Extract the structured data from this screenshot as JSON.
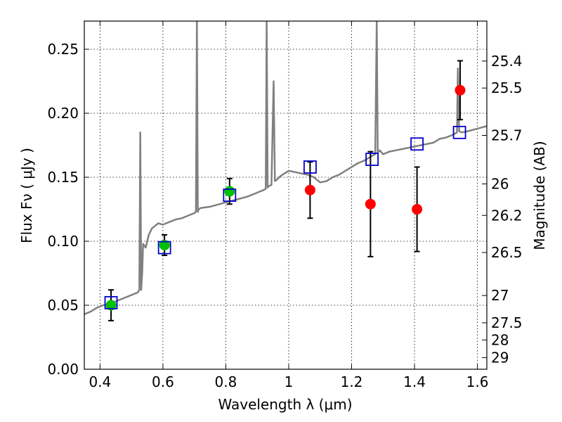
{
  "chart_data": {
    "type": "scatter",
    "title": "",
    "xlabel": "Wavelength  λ (μm)",
    "ylabel": "Flux  Fν  ( μJy )",
    "ylabel_right": "Magnitude (AB)",
    "xlim": [
      0.35,
      1.63
    ],
    "ylim": [
      0.0,
      0.272
    ],
    "grid": true,
    "x_ticks": [
      {
        "value": 0.4,
        "label": "0.4"
      },
      {
        "value": 0.6,
        "label": "0.6"
      },
      {
        "value": 0.8,
        "label": "0.8"
      },
      {
        "value": 1.0,
        "label": "1"
      },
      {
        "value": 1.2,
        "label": "1.2"
      },
      {
        "value": 1.4,
        "label": "1.4"
      },
      {
        "value": 1.6,
        "label": "1.6"
      }
    ],
    "y_ticks": [
      {
        "value": 0.0,
        "label": "0.00"
      },
      {
        "value": 0.05,
        "label": "0.05"
      },
      {
        "value": 0.1,
        "label": "0.10"
      },
      {
        "value": 0.15,
        "label": "0.15"
      },
      {
        "value": 0.2,
        "label": "0.20"
      },
      {
        "value": 0.25,
        "label": "0.25"
      }
    ],
    "right_ticks": [
      {
        "flux": 0.2408,
        "label": "25.4"
      },
      {
        "flux": 0.2197,
        "label": "25.5"
      },
      {
        "flux": 0.1827,
        "label": "25.7"
      },
      {
        "flux": 0.1448,
        "label": "26"
      },
      {
        "flux": 0.1202,
        "label": "26.2"
      },
      {
        "flux": 0.0912,
        "label": "26.5"
      },
      {
        "flux": 0.0576,
        "label": "27"
      },
      {
        "flux": 0.0363,
        "label": "27.5"
      },
      {
        "flux": 0.0229,
        "label": "28"
      },
      {
        "flux": 0.0091,
        "label": "29"
      }
    ],
    "colors": {
      "model": "#808080",
      "green_points": "#00c000",
      "red_points": "#ff0000",
      "squares": "#0000cc",
      "errorbars": "#000000",
      "grid": "#000000"
    },
    "series": [
      {
        "kind": "model-spectrum",
        "x": [
          0.35,
          0.37,
          0.39,
          0.41,
          0.43,
          0.45,
          0.47,
          0.49,
          0.51,
          0.52,
          0.525,
          0.528,
          0.531,
          0.534,
          0.537,
          0.545,
          0.555,
          0.565,
          0.575,
          0.585,
          0.6,
          0.62,
          0.64,
          0.66,
          0.68,
          0.7,
          0.705,
          0.708,
          0.711,
          0.714,
          0.72,
          0.75,
          0.78,
          0.81,
          0.84,
          0.87,
          0.9,
          0.92,
          0.927,
          0.93,
          0.933,
          0.936,
          0.945,
          0.952,
          0.956,
          0.962,
          0.97,
          0.98,
          1.0,
          1.02,
          1.04,
          1.06,
          1.08,
          1.1,
          1.12,
          1.14,
          1.16,
          1.18,
          1.2,
          1.22,
          1.24,
          1.26,
          1.275,
          1.28,
          1.283,
          1.286,
          1.29,
          1.3,
          1.32,
          1.34,
          1.36,
          1.38,
          1.4,
          1.42,
          1.44,
          1.46,
          1.48,
          1.5,
          1.52,
          1.535,
          1.538,
          1.542,
          1.55,
          1.57,
          1.6,
          1.63
        ],
        "y": [
          0.043,
          0.045,
          0.048,
          0.05,
          0.051,
          0.053,
          0.055,
          0.057,
          0.059,
          0.06,
          0.062,
          0.185,
          0.062,
          0.075,
          0.098,
          0.095,
          0.105,
          0.11,
          0.112,
          0.114,
          0.113,
          0.115,
          0.117,
          0.118,
          0.12,
          0.122,
          0.123,
          0.272,
          0.123,
          0.125,
          0.126,
          0.127,
          0.129,
          0.131,
          0.133,
          0.135,
          0.138,
          0.14,
          0.141,
          0.272,
          0.142,
          0.143,
          0.144,
          0.225,
          0.147,
          0.148,
          0.15,
          0.152,
          0.155,
          0.154,
          0.153,
          0.152,
          0.15,
          0.146,
          0.147,
          0.15,
          0.152,
          0.155,
          0.158,
          0.161,
          0.163,
          0.166,
          0.168,
          0.272,
          0.169,
          0.17,
          0.171,
          0.168,
          0.17,
          0.171,
          0.172,
          0.173,
          0.174,
          0.175,
          0.176,
          0.177,
          0.18,
          0.181,
          0.183,
          0.185,
          0.235,
          0.186,
          0.185,
          0.186,
          0.188,
          0.19
        ]
      },
      {
        "kind": "green-points",
        "x": [
          0.435,
          0.605,
          0.812
        ],
        "y": [
          0.05,
          0.097,
          0.139
        ],
        "yerr": [
          0.012,
          0.008,
          0.01
        ]
      },
      {
        "kind": "red-points",
        "x": [
          1.068,
          1.26,
          1.408,
          1.545
        ],
        "y": [
          0.14,
          0.129,
          0.125,
          0.218
        ],
        "yerr": [
          0.022,
          0.041,
          0.033,
          0.023
        ]
      },
      {
        "kind": "model-squares",
        "x": [
          0.435,
          0.605,
          0.812,
          1.068,
          1.265,
          1.408,
          1.543
        ],
        "y": [
          0.052,
          0.095,
          0.136,
          0.158,
          0.164,
          0.176,
          0.185
        ]
      }
    ]
  }
}
